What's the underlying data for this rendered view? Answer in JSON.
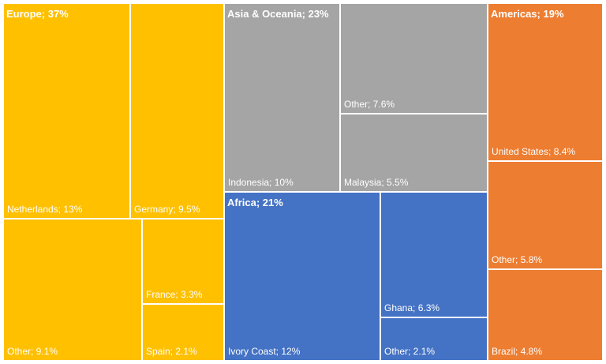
{
  "chart_data": {
    "type": "treemap",
    "groups": [
      {
        "name": "Europe",
        "label": "Europe; 37%",
        "color": "#ffc000",
        "children": [
          {
            "label": "Netherlands; 13%",
            "name": "Netherlands",
            "value": 13
          },
          {
            "label": "Germany; 9.5%",
            "name": "Germany",
            "value": 9.5
          },
          {
            "label": "Other; 9.1%",
            "name": "Other",
            "value": 9.1
          },
          {
            "label": "France; 3.3%",
            "name": "France",
            "value": 3.3
          },
          {
            "label": "Spain; 2.1%",
            "name": "Spain",
            "value": 2.1
          }
        ]
      },
      {
        "name": "Asia & Oceania",
        "label": "Asia & Oceania; 23%",
        "color": "#a5a5a5",
        "children": [
          {
            "label": "Indonesia; 10%",
            "name": "Indonesia",
            "value": 10
          },
          {
            "label": "Other; 7.6%",
            "name": "Other",
            "value": 7.6
          },
          {
            "label": "Malaysia; 5.5%",
            "name": "Malaysia",
            "value": 5.5
          }
        ]
      },
      {
        "name": "Africa",
        "label": "Africa; 21%",
        "color": "#4472c4",
        "children": [
          {
            "label": "Ivory Coast; 12%",
            "name": "Ivory Coast",
            "value": 12
          },
          {
            "label": "Ghana; 6.3%",
            "name": "Ghana",
            "value": 6.3
          },
          {
            "label": "Other; 2.1%",
            "name": "Other",
            "value": 2.1
          }
        ]
      },
      {
        "name": "Americas",
        "label": "Americas; 19%",
        "color": "#ed7d31",
        "children": [
          {
            "label": "United States; 8.4%",
            "name": "United States",
            "value": 8.4
          },
          {
            "label": "Other; 5.8%",
            "name": "Other",
            "value": 5.8
          },
          {
            "label": "Brazil; 4.8%",
            "name": "Brazil",
            "value": 4.8
          }
        ]
      }
    ]
  }
}
